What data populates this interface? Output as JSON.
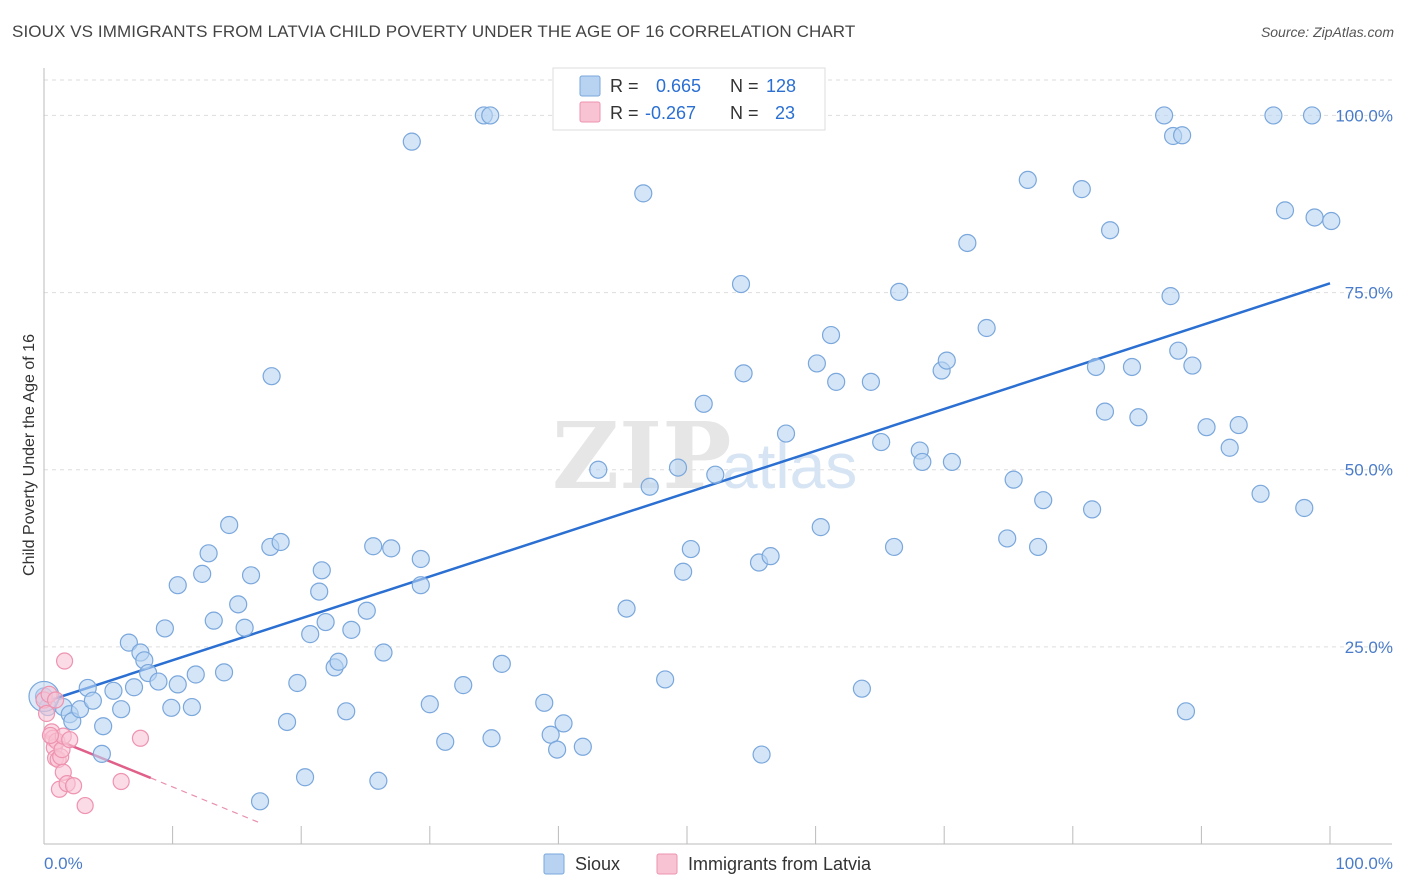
{
  "title": "SIOUX VS IMMIGRANTS FROM LATVIA CHILD POVERTY UNDER THE AGE OF 16 CORRELATION CHART",
  "source": "Source: ZipAtlas.com",
  "watermark": {
    "zip": "ZIP",
    "atlas": "atlas"
  },
  "colors": {
    "sioux_fill": "#b8d3f2",
    "sioux_stroke": "#7aa7dc",
    "sioux_line": "#2a6fd1",
    "latvia_fill": "#f8c3d3",
    "latvia_stroke": "#ee93b0",
    "latvia_line": "#e0608a",
    "axis_text": "#4a7cc9",
    "grid": "#dddddd"
  },
  "legend_box": {
    "rows": [
      {
        "r_label": "R =",
        "r_value": "0.665",
        "n_label": "N =",
        "n_value": "128"
      },
      {
        "r_label": "R =",
        "r_value": "-0.267",
        "n_label": "N =",
        "n_value": "23"
      }
    ]
  },
  "chart_data": {
    "type": "scatter",
    "xlabel": "",
    "ylabel": "Child Poverty Under the Age of 16",
    "xlim": [
      0,
      100
    ],
    "ylim": [
      0,
      105
    ],
    "x_tick_labels": [
      "0.0%",
      "100.0%"
    ],
    "y_ticks": [
      25,
      50,
      75,
      100
    ],
    "y_tick_labels": [
      "25.0%",
      "50.0%",
      "75.0%",
      "100.0%"
    ],
    "legend": [
      "Sioux",
      "Immigrants from Latvia"
    ],
    "series": [
      {
        "name": "Sioux",
        "r": 0.665,
        "n": 128,
        "trend": {
          "x": [
            0,
            100
          ],
          "y": [
            17.2,
            76.3
          ]
        },
        "points": [
          [
            0,
            18
          ],
          [
            0.3,
            16.5
          ],
          [
            1.5,
            16.5
          ],
          [
            2,
            15.5
          ],
          [
            2.2,
            14.5
          ],
          [
            2.8,
            16.2
          ],
          [
            3.4,
            19.2
          ],
          [
            3.8,
            17.4
          ],
          [
            4.5,
            9.9
          ],
          [
            4.6,
            13.8
          ],
          [
            5.4,
            18.8
          ],
          [
            6,
            16.2
          ],
          [
            6.6,
            25.6
          ],
          [
            7,
            19.3
          ],
          [
            7.5,
            24.2
          ],
          [
            7.8,
            23.1
          ],
          [
            8.1,
            21.3
          ],
          [
            8.9,
            20.1
          ],
          [
            9.4,
            27.6
          ],
          [
            9.9,
            16.4
          ],
          [
            10.4,
            33.7
          ],
          [
            10.4,
            19.7
          ],
          [
            11.5,
            16.5
          ],
          [
            11.8,
            21.1
          ],
          [
            12.3,
            35.3
          ],
          [
            12.8,
            38.2
          ],
          [
            13.2,
            28.7
          ],
          [
            14,
            21.4
          ],
          [
            14.4,
            42.2
          ],
          [
            15.1,
            31
          ],
          [
            15.6,
            27.7
          ],
          [
            16.1,
            35.1
          ],
          [
            16.8,
            3.2
          ],
          [
            17.6,
            39.1
          ],
          [
            17.7,
            63.2
          ],
          [
            18.4,
            39.8
          ],
          [
            18.9,
            14.4
          ],
          [
            19.7,
            19.9
          ],
          [
            20.3,
            6.6
          ],
          [
            20.7,
            26.8
          ],
          [
            21.4,
            32.8
          ],
          [
            21.6,
            35.8
          ],
          [
            22.6,
            22.1
          ],
          [
            22.9,
            22.9
          ],
          [
            23.5,
            15.9
          ],
          [
            23.9,
            27.4
          ],
          [
            25.1,
            30.1
          ],
          [
            25.6,
            39.2
          ],
          [
            26,
            6.1
          ],
          [
            26.4,
            24.2
          ],
          [
            27,
            38.9
          ],
          [
            28.6,
            96.3
          ],
          [
            29.3,
            33.7
          ],
          [
            29.3,
            37.4
          ],
          [
            30,
            16.9
          ],
          [
            31.2,
            11.6
          ],
          [
            32.6,
            19.6
          ],
          [
            34.2,
            100
          ],
          [
            34.7,
            100
          ],
          [
            34.8,
            12.1
          ],
          [
            35.6,
            22.6
          ],
          [
            38.9,
            17.1
          ],
          [
            39.4,
            12.6
          ],
          [
            39.9,
            10.5
          ],
          [
            40.4,
            14.2
          ],
          [
            41.9,
            10.9
          ],
          [
            43.1,
            50
          ],
          [
            46.6,
            89
          ],
          [
            47.1,
            47.6
          ],
          [
            48.3,
            20.4
          ],
          [
            49.3,
            50.3
          ],
          [
            49.7,
            35.6
          ],
          [
            50.3,
            38.8
          ],
          [
            51.3,
            59.3
          ],
          [
            52.2,
            49.3
          ],
          [
            54.2,
            76.2
          ],
          [
            54.4,
            63.6
          ],
          [
            55.6,
            36.9
          ],
          [
            55.8,
            9.8
          ],
          [
            56.5,
            37.8
          ],
          [
            57.7,
            55.1
          ],
          [
            60.1,
            65
          ],
          [
            60.4,
            41.9
          ],
          [
            61.2,
            69
          ],
          [
            61.6,
            62.4
          ],
          [
            63.6,
            19.1
          ],
          [
            64.3,
            62.4
          ],
          [
            65.1,
            53.9
          ],
          [
            66.1,
            39.1
          ],
          [
            66.5,
            75.1
          ],
          [
            68.1,
            52.7
          ],
          [
            68.3,
            51.1
          ],
          [
            69.8,
            64
          ],
          [
            70.2,
            65.4
          ],
          [
            70.6,
            51.1
          ],
          [
            71.8,
            82
          ],
          [
            73.3,
            70
          ],
          [
            74.9,
            40.3
          ],
          [
            75.4,
            48.6
          ],
          [
            76.5,
            90.9
          ],
          [
            77.3,
            39.1
          ],
          [
            77.7,
            45.7
          ],
          [
            80.7,
            89.6
          ],
          [
            81.5,
            44.4
          ],
          [
            81.8,
            64.5
          ],
          [
            82.5,
            58.2
          ],
          [
            82.9,
            83.8
          ],
          [
            84.6,
            64.5
          ],
          [
            85.1,
            57.4
          ],
          [
            87.1,
            100
          ],
          [
            87.6,
            74.5
          ],
          [
            87.8,
            97.1
          ],
          [
            88.2,
            66.8
          ],
          [
            88.5,
            97.2
          ],
          [
            88.8,
            15.9
          ],
          [
            89.3,
            64.7
          ],
          [
            90.4,
            56
          ],
          [
            92.2,
            53.1
          ],
          [
            92.9,
            56.3
          ],
          [
            94.6,
            46.6
          ],
          [
            95.6,
            100
          ],
          [
            96.5,
            86.6
          ],
          [
            98,
            44.6
          ],
          [
            98.6,
            100
          ],
          [
            98.8,
            85.6
          ],
          [
            100.1,
            85.1
          ],
          [
            21.9,
            28.5
          ],
          [
            45.3,
            30.4
          ]
        ]
      },
      {
        "name": "Immigrants from Latvia",
        "r": -0.267,
        "n": 23,
        "trend": {
          "x": [
            0,
            8.3
          ],
          "y": [
            12.6,
            6.5
          ]
        },
        "trend_dashed": {
          "x": [
            8.3,
            17
          ],
          "y": [
            6.5,
            0
          ]
        },
        "points": [
          [
            0,
            17.5
          ],
          [
            0.2,
            15.6
          ],
          [
            0.4,
            18.3
          ],
          [
            0.6,
            13
          ],
          [
            0.7,
            12.1
          ],
          [
            0.8,
            10.8
          ],
          [
            0.9,
            9.3
          ],
          [
            0.9,
            17.5
          ],
          [
            1,
            11.7
          ],
          [
            1.1,
            9.1
          ],
          [
            1.2,
            4.9
          ],
          [
            1.3,
            9.5
          ],
          [
            1.4,
            10.5
          ],
          [
            1.5,
            7.3
          ],
          [
            1.5,
            12.4
          ],
          [
            1.6,
            23
          ],
          [
            1.8,
            5.7
          ],
          [
            2,
            11.9
          ],
          [
            2.3,
            5.4
          ],
          [
            3.2,
            2.6
          ],
          [
            6,
            6
          ],
          [
            7.5,
            12.1
          ],
          [
            0.5,
            12.5
          ]
        ]
      }
    ]
  }
}
